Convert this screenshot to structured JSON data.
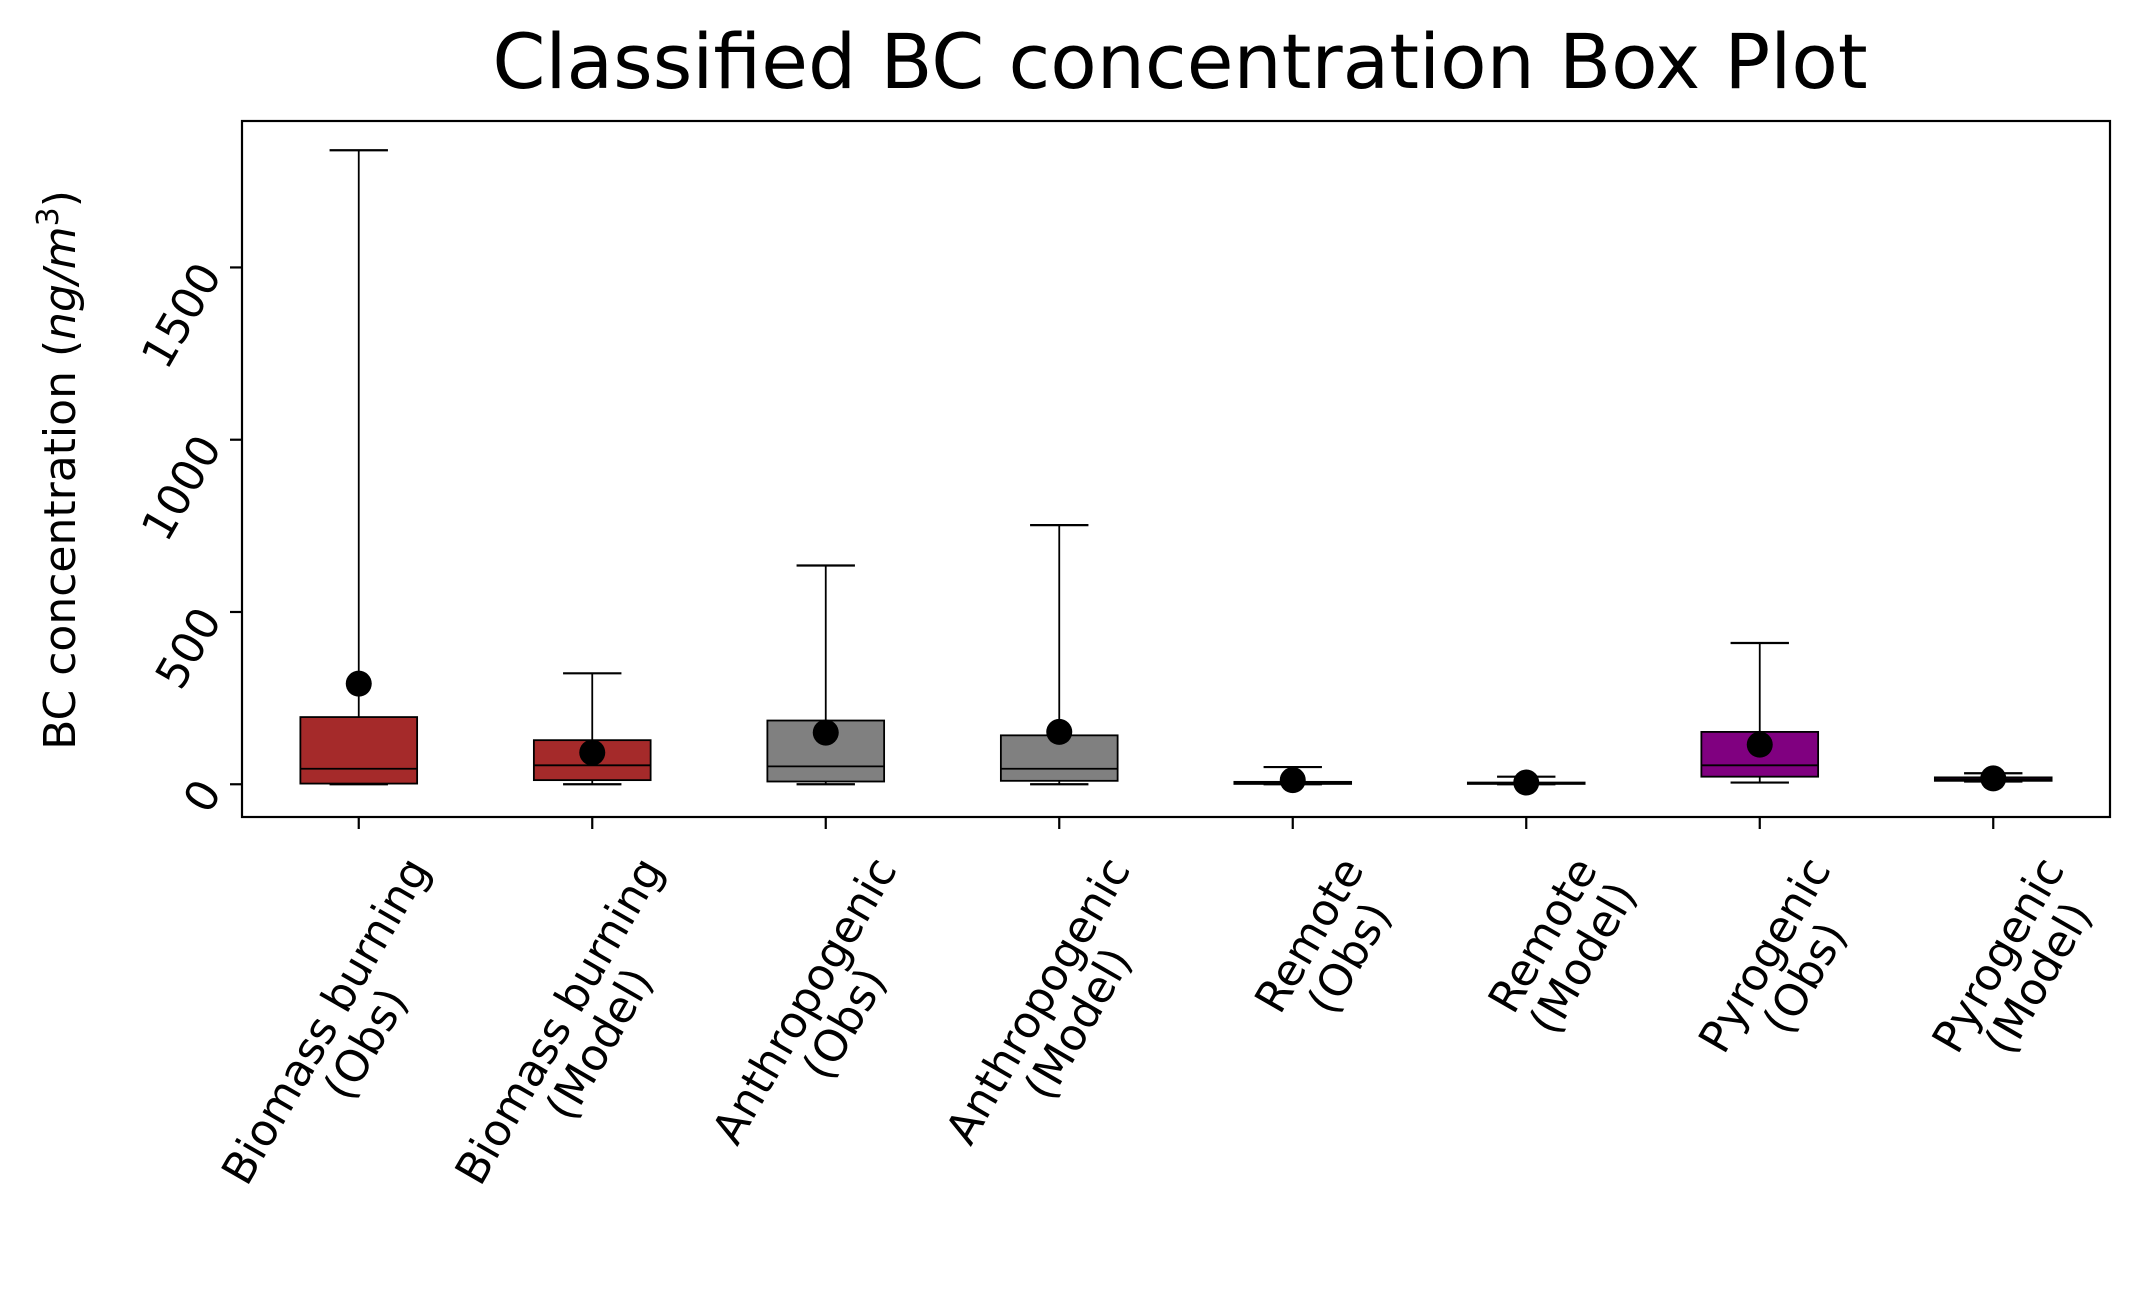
{
  "chart_data": {
    "type": "box",
    "title": "Classified BC concentration Box Plot",
    "ylabel_prefix": "BC concentration (",
    "ylabel_unit": "ng/m",
    "ylabel_exp": "3",
    "ylabel_suffix": ")",
    "ylim": [
      -95,
      1925
    ],
    "yticks": [
      0,
      500,
      1000,
      1500
    ],
    "ytick_labels": [
      "0",
      "500",
      "1000",
      "1500"
    ],
    "grid": false,
    "categories": [
      {
        "line1": "Biomass burning",
        "line2": "(Obs)"
      },
      {
        "line1": "Biomass burning",
        "line2": "(Model)"
      },
      {
        "line1": "Anthropogenic",
        "line2": "(Obs)"
      },
      {
        "line1": "Anthropogenic",
        "line2": "(Model)"
      },
      {
        "line1": "Remote",
        "line2": "(Obs)"
      },
      {
        "line1": "Remote",
        "line2": "(Model)"
      },
      {
        "line1": "Pyrogenic",
        "line2": "(Obs)"
      },
      {
        "line1": "Pyrogenic",
        "line2": "(Model)"
      }
    ],
    "boxes": [
      {
        "whislo": 0,
        "q1": 2,
        "med": 45,
        "q3": 195,
        "whishi": 1840,
        "mean": 292,
        "color": "#a52a2a"
      },
      {
        "whislo": 0,
        "q1": 12,
        "med": 55,
        "q3": 128,
        "whishi": 322,
        "mean": 92,
        "color": "#a52a2a"
      },
      {
        "whislo": 0,
        "q1": 8,
        "med": 52,
        "q3": 185,
        "whishi": 635,
        "mean": 150,
        "color": "#808080"
      },
      {
        "whislo": 0,
        "q1": 10,
        "med": 45,
        "q3": 142,
        "whishi": 752,
        "mean": 152,
        "color": "#808080"
      },
      {
        "whislo": 0,
        "q1": 1,
        "med": 3,
        "q3": 7,
        "whishi": 50,
        "mean": 12,
        "color": "#a52a2a"
      },
      {
        "whislo": 0,
        "q1": 1,
        "med": 2,
        "q3": 5,
        "whishi": 22,
        "mean": 5,
        "color": "#a52a2a"
      },
      {
        "whislo": 5,
        "q1": 22,
        "med": 55,
        "q3": 152,
        "whishi": 410,
        "mean": 115,
        "color": "#800080"
      },
      {
        "whislo": 8,
        "q1": 10,
        "med": 15,
        "q3": 20,
        "whishi": 32,
        "mean": 17,
        "color": "#800080"
      }
    ]
  }
}
